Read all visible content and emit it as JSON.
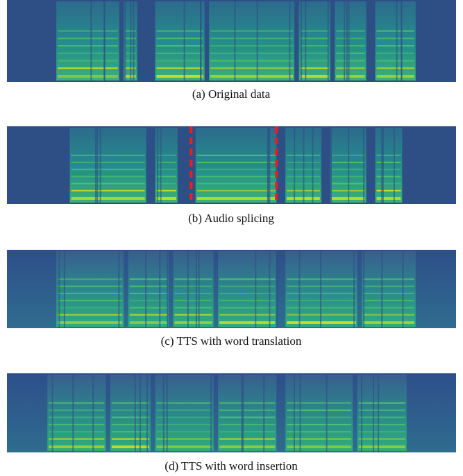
{
  "figures": [
    {
      "caption": "(a)  Original data"
    },
    {
      "caption": "(b)  Audio splicing"
    },
    {
      "caption": "(c)  TTS with word translation"
    },
    {
      "caption": "(d)  TTS with word insertion"
    }
  ]
}
